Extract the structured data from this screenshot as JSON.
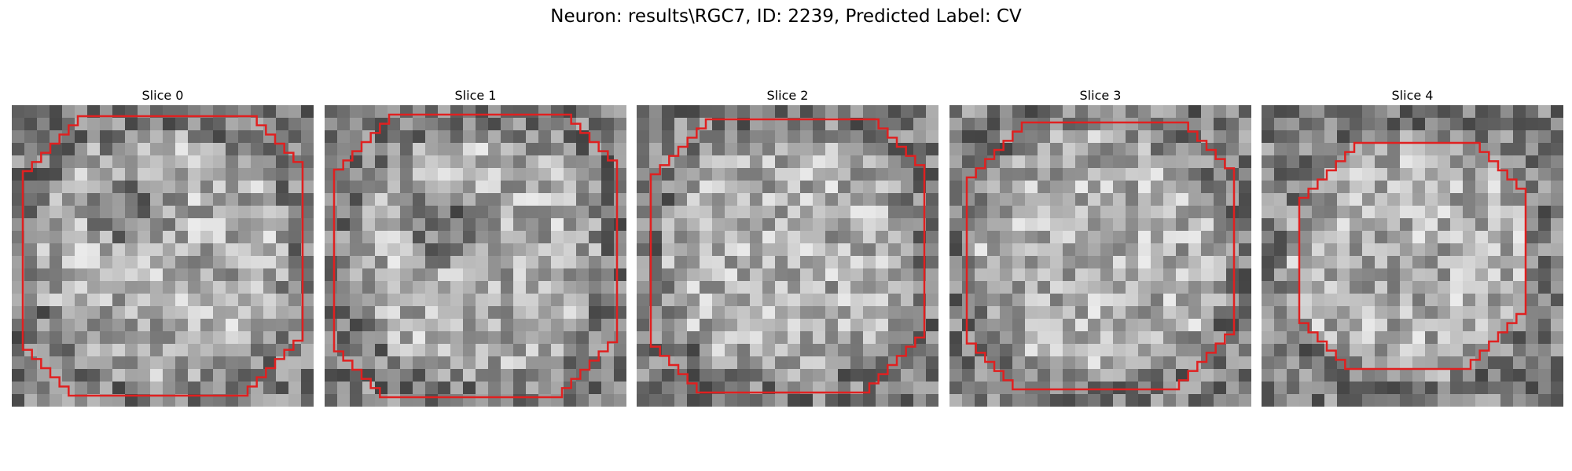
{
  "figure": {
    "title": "Neuron: results\\RGC7, ID: 2239, Predicted Label: CV"
  },
  "panels": [
    {
      "title": "Slice 0",
      "seed": 11,
      "dark_core": [
        0.38,
        0.35
      ],
      "contour_color": "#e02020"
    },
    {
      "title": "Slice 1",
      "seed": 23,
      "dark_core": [
        0.4,
        0.4
      ],
      "contour_color": "#e02020"
    },
    {
      "title": "Slice 2",
      "seed": 37,
      "dark_core": [
        0.55,
        0.38
      ],
      "contour_color": "#e02020"
    },
    {
      "title": "Slice 3",
      "seed": 41,
      "dark_core": [
        0.5,
        0.45
      ],
      "contour_color": "#e02020"
    },
    {
      "title": "Slice 4",
      "seed": 53,
      "dark_core": [
        0.5,
        0.5
      ],
      "contour_color": "#e02020"
    }
  ]
}
